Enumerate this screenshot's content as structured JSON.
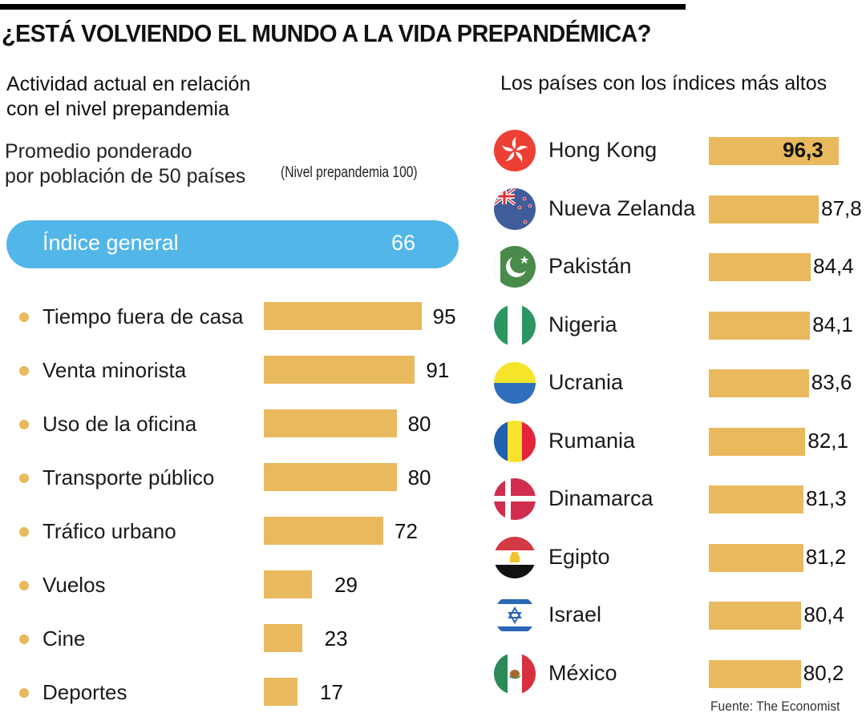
{
  "title": "¿ESTÁ VOLVIENDO EL MUNDO A LA VIDA PREPANDÉMICA?",
  "left_panel": {
    "title_line1": "Actividad actual en relación",
    "title_line2": "con el nivel prepandemia",
    "subtitle_line1": "Promedio ponderado",
    "subtitle_line2": "por población de 50 países",
    "note": "(Nivel prepandemia 100)",
    "general_index": {
      "label": "Índice general",
      "value": "66"
    }
  },
  "right_panel": {
    "title": "Los países con los índices más altos"
  },
  "source": "Fuente: The Economist",
  "colors": {
    "bar": "#e8b95d",
    "pill": "#53b6e8",
    "rule": "#000000"
  },
  "chart_data": [
    {
      "type": "bar",
      "orientation": "horizontal",
      "title": "Actividad actual en relación con el nivel prepandemia",
      "subtitle": "Promedio ponderado por población de 50 países (Nivel prepandemia 100)",
      "categories": [
        "Tiempo fuera de casa",
        "Venta minorista",
        "Uso de la oficina",
        "Transporte público",
        "Tráfico urbano",
        "Vuelos",
        "Cine",
        "Deportes"
      ],
      "values": [
        95,
        91,
        80,
        80,
        72,
        29,
        23,
        17
      ],
      "labels": [
        "95",
        "91",
        "80",
        "80",
        "72",
        "29",
        "23",
        "17"
      ],
      "summary": {
        "label": "Índice general",
        "value": 66
      },
      "xlim": [
        0,
        100
      ]
    },
    {
      "type": "bar",
      "orientation": "horizontal",
      "title": "Los países con los índices más altos",
      "categories": [
        "Hong Kong",
        "Nueva Zelanda",
        "Pakistán",
        "Nigeria",
        "Ucrania",
        "Rumania",
        "Dinamarca",
        "Egipto",
        "Israel",
        "México"
      ],
      "values": [
        96.3,
        87.8,
        84.4,
        84.1,
        83.6,
        82.1,
        81.3,
        81.2,
        80.4,
        80.2
      ],
      "labels": [
        "96,3",
        "87,8",
        "84,4",
        "84,1",
        "83,6",
        "82,1",
        "81,3",
        "81,2",
        "80,4",
        "80,2"
      ],
      "flags": [
        "hong-kong",
        "new-zealand",
        "pakistan",
        "nigeria",
        "ukraine",
        "romania",
        "denmark",
        "egypt",
        "israel",
        "mexico"
      ],
      "highlight": "Hong Kong"
    }
  ]
}
